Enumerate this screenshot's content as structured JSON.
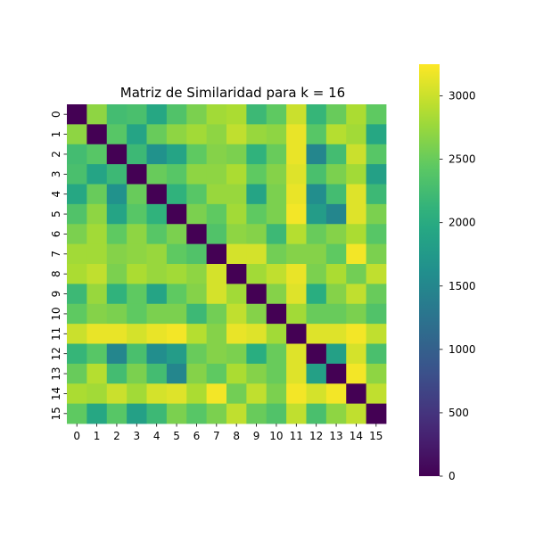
{
  "chart_data": {
    "type": "heatmap",
    "title": "Matriz de Similaridad para k = 16",
    "x_labels": [
      "0",
      "1",
      "2",
      "3",
      "4",
      "5",
      "6",
      "7",
      "8",
      "9",
      "10",
      "11",
      "12",
      "13",
      "14",
      "15"
    ],
    "y_labels": [
      "0",
      "1",
      "2",
      "3",
      "4",
      "5",
      "6",
      "7",
      "8",
      "9",
      "10",
      "11",
      "12",
      "13",
      "14",
      "15"
    ],
    "colormap": "viridis",
    "colorbar": {
      "min": 0,
      "max": 3250,
      "ticks": [
        0,
        500,
        1000,
        1500,
        2000,
        2500,
        3000
      ],
      "tick_labels": [
        "0",
        "500",
        "1000",
        "1500",
        "2000",
        "2500",
        "3000"
      ]
    },
    "values": [
      [
        0,
        2700,
        2250,
        2300,
        1950,
        2350,
        2600,
        2800,
        2850,
        2200,
        2450,
        3000,
        2150,
        2500,
        2850,
        2450
      ],
      [
        2700,
        0,
        2400,
        1900,
        2500,
        2700,
        2800,
        2700,
        2950,
        2750,
        2700,
        3150,
        2400,
        2900,
        2800,
        1950
      ],
      [
        2250,
        2400,
        0,
        2200,
        1650,
        1900,
        2450,
        2650,
        2600,
        2100,
        2500,
        3150,
        1500,
        2250,
        3000,
        2400
      ],
      [
        2300,
        1900,
        2200,
        0,
        2500,
        2400,
        2700,
        2700,
        2850,
        2450,
        2650,
        3100,
        2300,
        2600,
        2800,
        1850
      ],
      [
        1950,
        2500,
        1650,
        2500,
        0,
        2100,
        2400,
        2750,
        2750,
        1900,
        2600,
        3150,
        1600,
        2250,
        3100,
        2200
      ],
      [
        2350,
        2700,
        1900,
        2400,
        2100,
        0,
        2600,
        2450,
        2800,
        2450,
        2600,
        3200,
        1800,
        1500,
        3100,
        2600
      ],
      [
        2600,
        2800,
        2450,
        2700,
        2400,
        2600,
        0,
        2350,
        2700,
        2650,
        2200,
        2900,
        2500,
        2650,
        2850,
        2400
      ],
      [
        2800,
        2800,
        2650,
        2700,
        2750,
        2450,
        2350,
        0,
        3050,
        3050,
        2550,
        2650,
        2650,
        2450,
        3200,
        2600
      ],
      [
        2850,
        2950,
        2600,
        2850,
        2750,
        2800,
        2700,
        3050,
        0,
        2800,
        2950,
        3150,
        2600,
        2850,
        2550,
        2950
      ],
      [
        2200,
        2750,
        2100,
        2450,
        1900,
        2450,
        2650,
        3050,
        2800,
        0,
        2650,
        3100,
        2050,
        2650,
        2950,
        2500
      ],
      [
        2450,
        2650,
        2600,
        2450,
        2600,
        2600,
        2200,
        2550,
        2950,
        2650,
        0,
        2800,
        2500,
        2500,
        2600,
        2350
      ],
      [
        3000,
        3150,
        3150,
        3050,
        3150,
        3200,
        2900,
        2650,
        3150,
        3100,
        2800,
        0,
        3100,
        3100,
        3200,
        2950
      ],
      [
        2150,
        2400,
        1500,
        2300,
        1600,
        1800,
        2500,
        2650,
        2600,
        2050,
        2500,
        3100,
        0,
        1850,
        3050,
        2300
      ],
      [
        2500,
        2900,
        2250,
        2600,
        2250,
        1500,
        2650,
        2450,
        2850,
        2650,
        2500,
        3100,
        1850,
        0,
        3200,
        2700
      ],
      [
        2850,
        2800,
        3000,
        2800,
        3050,
        3100,
        2850,
        3200,
        2550,
        2950,
        2600,
        3200,
        3050,
        3200,
        0,
        2950
      ],
      [
        2450,
        1950,
        2400,
        1850,
        2200,
        2600,
        2400,
        2600,
        2950,
        2500,
        2350,
        2950,
        2300,
        2700,
        2950,
        0
      ]
    ]
  }
}
